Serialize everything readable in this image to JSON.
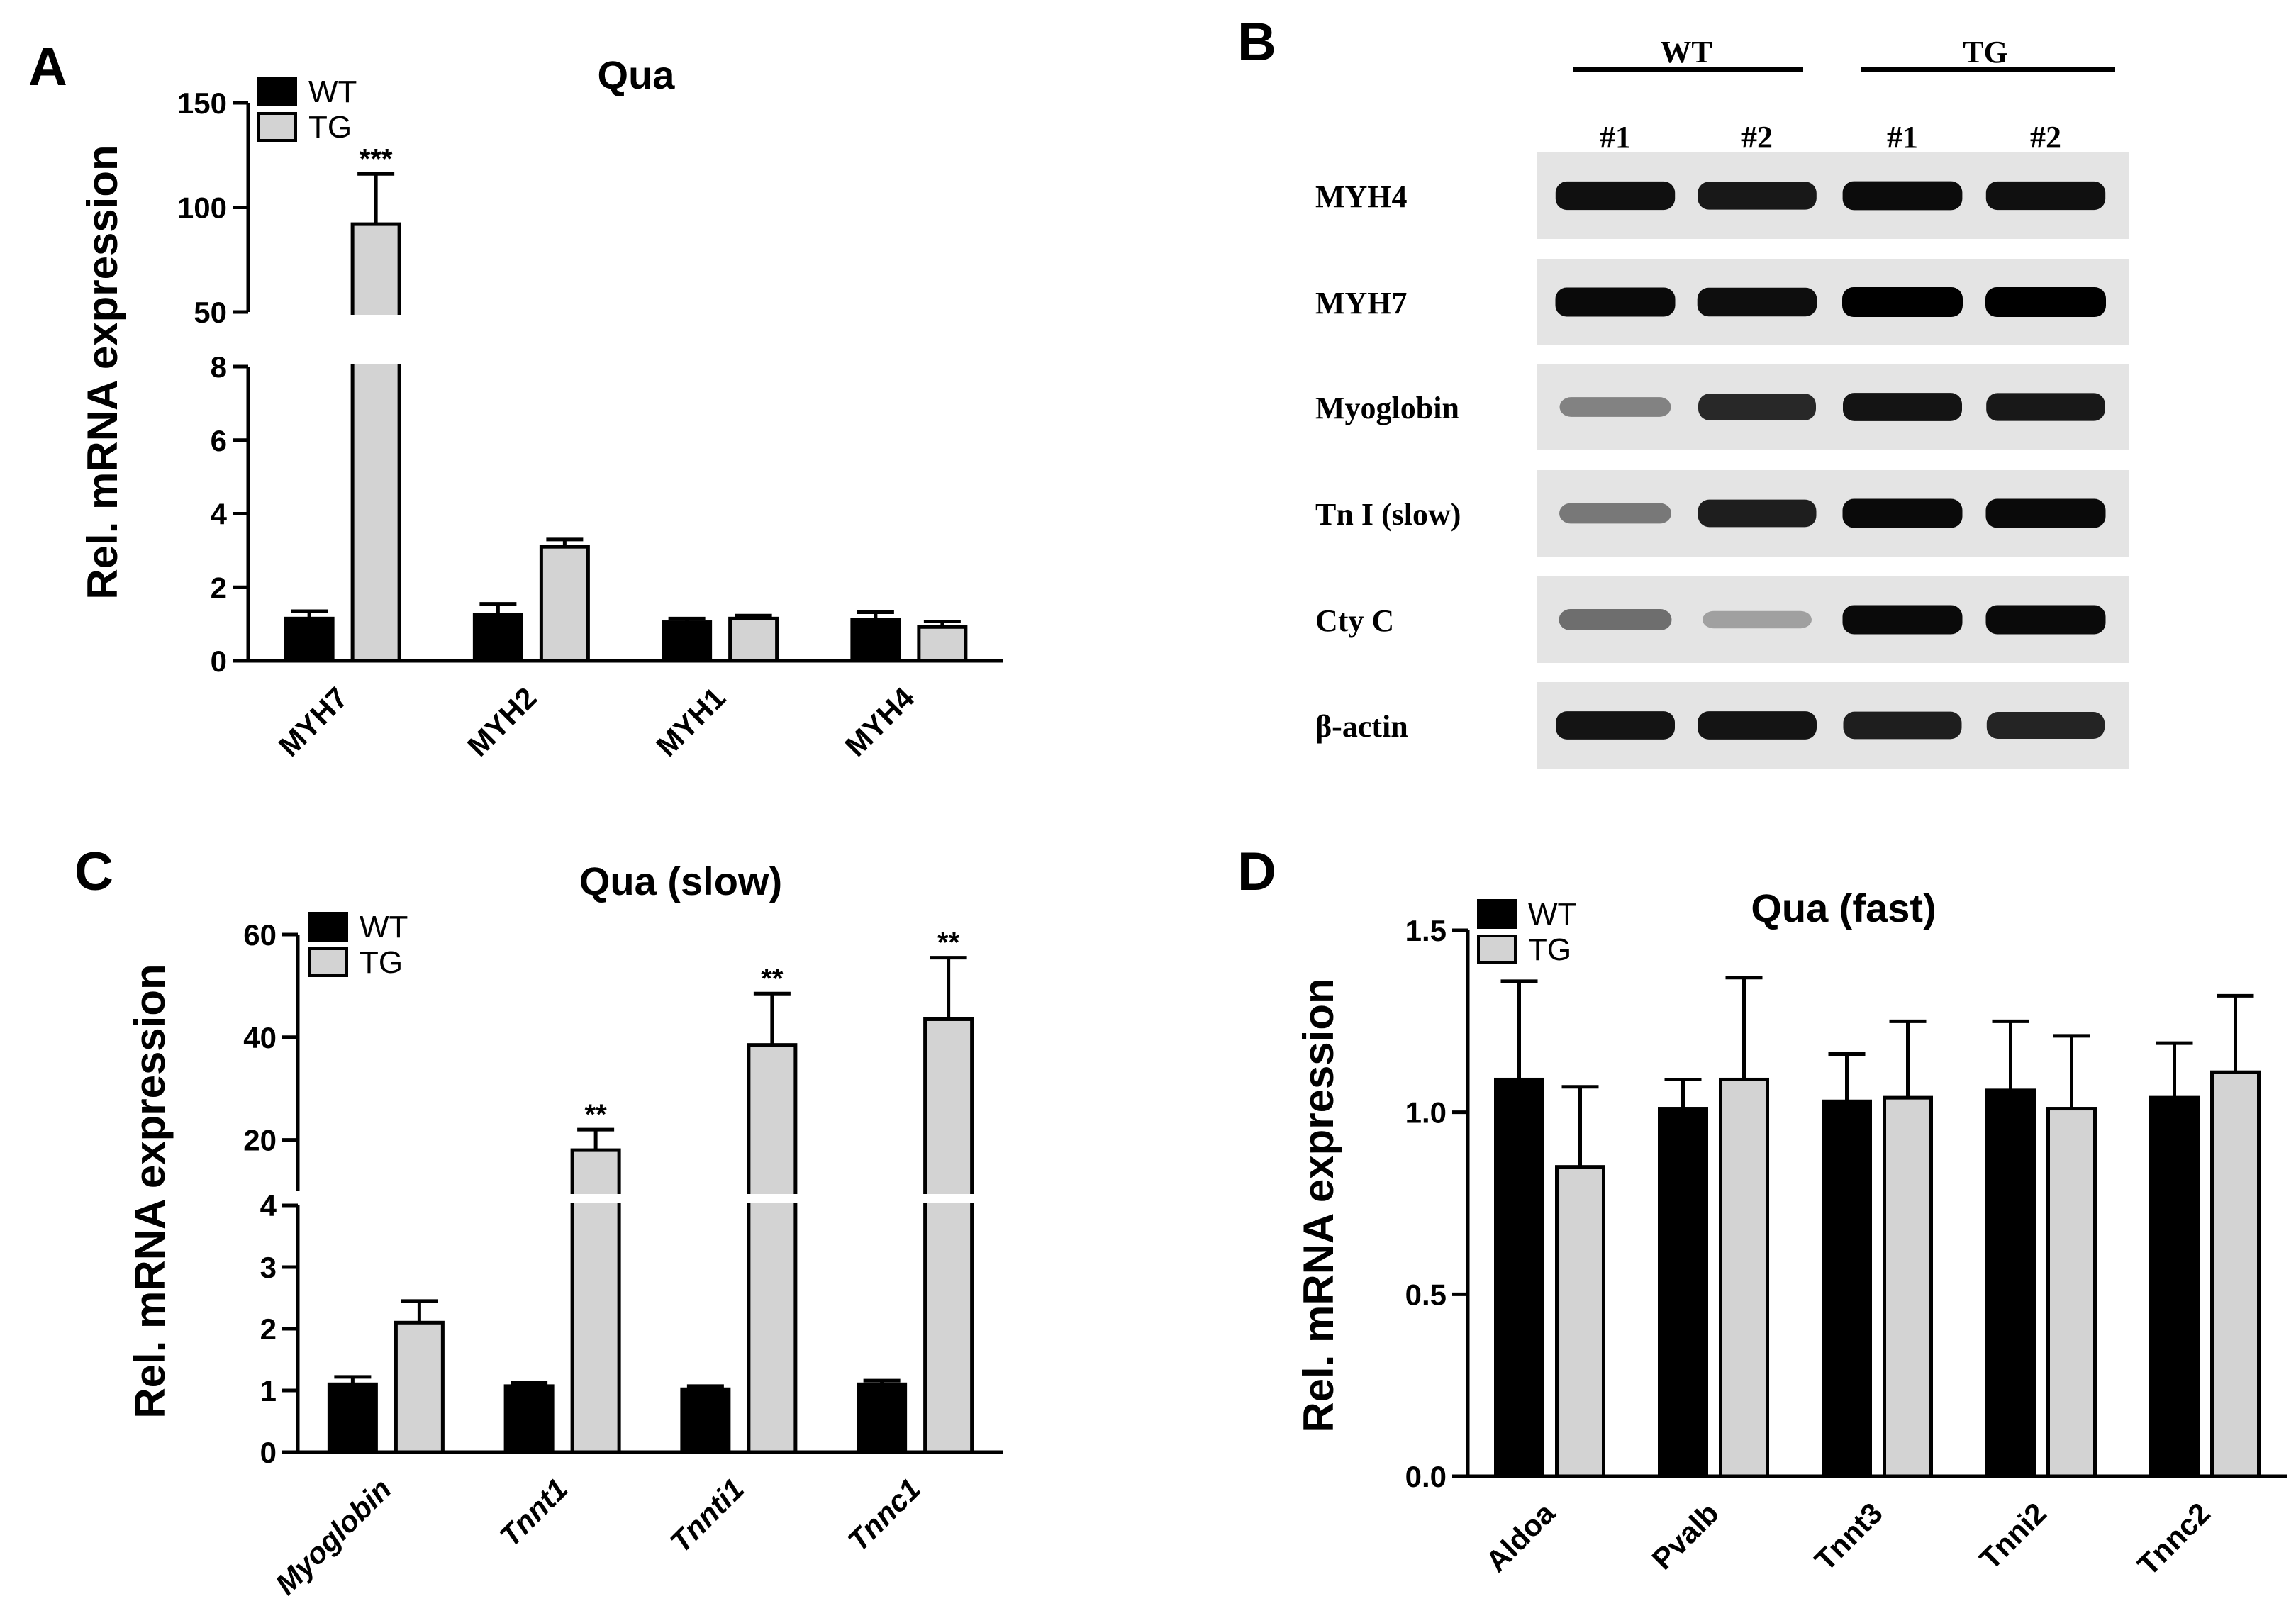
{
  "panels": {
    "A": {
      "label": "A"
    },
    "B": {
      "label": "B"
    },
    "C": {
      "label": "C"
    },
    "D": {
      "label": "D"
    }
  },
  "colors": {
    "wt": "#000000",
    "tg": "#d3d3d3",
    "axis": "#000000"
  },
  "chart_data": [
    {
      "id": "A",
      "type": "bar",
      "title": "Qua",
      "ylabel": "Rel. mRNA expression",
      "xlabel": "",
      "categories": [
        "MYH7",
        "MYH2",
        "MYH1",
        "MYH4"
      ],
      "series": [
        {
          "name": "WT",
          "values": [
            1.15,
            1.25,
            1.05,
            1.12
          ],
          "errors": [
            0.2,
            0.3,
            0.1,
            0.2
          ]
        },
        {
          "name": "TG",
          "values": [
            92,
            3.1,
            1.15,
            0.92
          ],
          "errors": [
            24,
            0.2,
            0.08,
            0.15
          ]
        }
      ],
      "significance": [
        "***",
        "",
        "",
        ""
      ],
      "axis_break": {
        "lower_range": [
          0,
          8
        ],
        "upper_range": [
          50,
          150
        ]
      },
      "yticks_lower": [
        "0",
        "2",
        "4",
        "6",
        "8"
      ],
      "yticks_upper": [
        "50",
        "100",
        "150"
      ],
      "legend": [
        "WT",
        "TG"
      ],
      "legend_position": "top-left",
      "grid": false
    },
    {
      "id": "C",
      "type": "bar",
      "title": "Qua  (slow)",
      "ylabel": "Rel. mRNA expression",
      "xlabel": "",
      "categories": [
        "Myoglobin",
        "Tnnt1",
        "Tnnti1",
        "Tnnc1"
      ],
      "series": [
        {
          "name": "WT",
          "values": [
            1.1,
            1.07,
            1.02,
            1.1
          ],
          "errors": [
            0.12,
            0.05,
            0.05,
            0.06
          ]
        },
        {
          "name": "TG",
          "values": [
            2.1,
            18,
            38.5,
            43.5
          ],
          "errors": [
            0.35,
            4,
            10,
            12
          ]
        }
      ],
      "significance": [
        "",
        "**",
        "**",
        "**"
      ],
      "axis_break": {
        "lower_range": [
          0,
          4
        ],
        "upper_range": [
          10,
          60
        ]
      },
      "yticks_lower": [
        "0",
        "1",
        "2",
        "3",
        "4"
      ],
      "yticks_upper": [
        "20",
        "40",
        "60"
      ],
      "legend": [
        "WT",
        "TG"
      ],
      "legend_position": "top-left",
      "grid": false
    },
    {
      "id": "D",
      "type": "bar",
      "title": "Qua  (fast)",
      "ylabel": "Rel. mRNA expression",
      "xlabel": "",
      "categories": [
        "Aldoa",
        "Pvalb",
        "Tnnt3",
        "Tnni2",
        "Tnnc2"
      ],
      "series": [
        {
          "name": "WT",
          "values": [
            1.09,
            1.01,
            1.03,
            1.06,
            1.04
          ],
          "errors": [
            0.27,
            0.08,
            0.13,
            0.19,
            0.15
          ]
        },
        {
          "name": "TG",
          "values": [
            0.85,
            1.09,
            1.04,
            1.01,
            1.11
          ],
          "errors": [
            0.22,
            0.28,
            0.21,
            0.2,
            0.21
          ]
        }
      ],
      "ylim": [
        0,
        1.5
      ],
      "yticks": [
        "0.0",
        "0.5",
        "1.0",
        "1.5"
      ],
      "legend": [
        "WT",
        "TG"
      ],
      "legend_position": "top-left",
      "grid": false
    }
  ],
  "blot": {
    "groups": [
      {
        "label": "WT"
      },
      {
        "label": "TG"
      }
    ],
    "lanes": [
      "#1",
      "#2",
      "#1",
      "#2"
    ],
    "rows": [
      {
        "label": "MYH4",
        "intensity": [
          0.92,
          0.88,
          0.94,
          0.92
        ]
      },
      {
        "label": "MYH7",
        "intensity": [
          0.95,
          0.93,
          1.0,
          1.0
        ]
      },
      {
        "label": "Myoglobin",
        "intensity": [
          0.35,
          0.8,
          0.9,
          0.88
        ]
      },
      {
        "label": "Tn I (slow)",
        "intensity": [
          0.4,
          0.85,
          0.95,
          0.95
        ]
      },
      {
        "label": "Cty C",
        "intensity": [
          0.45,
          0.2,
          0.95,
          0.95
        ]
      },
      {
        "label": "β-actin",
        "intensity": [
          0.9,
          0.9,
          0.85,
          0.82
        ]
      }
    ]
  }
}
